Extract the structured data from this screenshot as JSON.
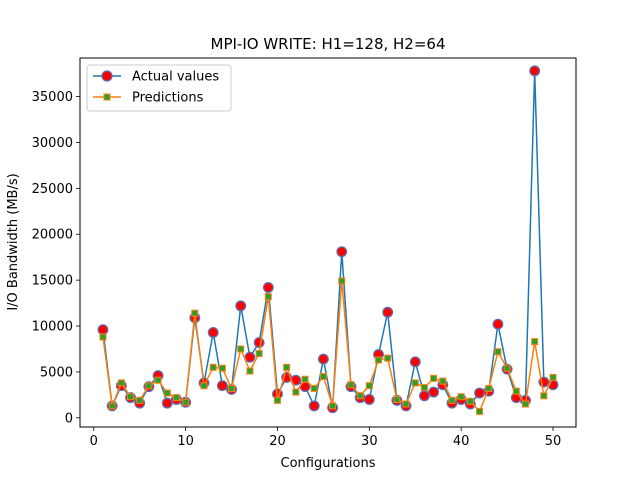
{
  "chart_data": {
    "type": "line",
    "title": "MPI-IO WRITE: H1=128, H2=64",
    "xlabel": "Configurations",
    "ylabel": "I/O Bandwidth (MB/s)",
    "xlim": [
      -1.5,
      52.5
    ],
    "ylim": [
      -1000,
      39200
    ],
    "xticks": [
      0,
      10,
      20,
      30,
      40,
      50
    ],
    "yticks": [
      0,
      5000,
      10000,
      15000,
      20000,
      25000,
      30000,
      35000
    ],
    "grid": false,
    "legend_position": "upper-left",
    "x": [
      1,
      2,
      3,
      4,
      5,
      6,
      7,
      8,
      9,
      10,
      11,
      12,
      13,
      14,
      15,
      16,
      17,
      18,
      19,
      20,
      21,
      22,
      23,
      24,
      25,
      26,
      27,
      28,
      29,
      30,
      31,
      32,
      33,
      34,
      35,
      36,
      37,
      38,
      39,
      40,
      41,
      42,
      43,
      44,
      45,
      46,
      47,
      48,
      49,
      50
    ],
    "series": [
      {
        "name": "Actual values",
        "line_color": "#1f77b4",
        "marker": "circle",
        "marker_face": "#ff0000",
        "marker_edge": "#5f6fb0",
        "values": [
          9600,
          1300,
          3500,
          2200,
          1600,
          3400,
          4600,
          1600,
          2000,
          1700,
          10900,
          3800,
          9300,
          3500,
          3100,
          12200,
          6600,
          8200,
          14200,
          2600,
          4400,
          4100,
          3400,
          1300,
          6400,
          1100,
          18100,
          3400,
          2200,
          2000,
          6900,
          11500,
          1900,
          1300,
          6100,
          2400,
          2800,
          3600,
          1600,
          2000,
          1500,
          2700,
          2900,
          10200,
          5300,
          2200,
          1900,
          37800,
          3900,
          3600
        ]
      },
      {
        "name": "Predictions",
        "line_color": "#ff7f0e",
        "marker": "square",
        "marker_face": "#2ca02c",
        "marker_edge": "#ff7f0e",
        "values": [
          8800,
          1300,
          3800,
          2300,
          1900,
          3500,
          4100,
          2700,
          2200,
          1700,
          11400,
          3500,
          5500,
          5400,
          3200,
          7500,
          5100,
          7000,
          13200,
          1900,
          5500,
          2800,
          4200,
          3200,
          4500,
          1300,
          14900,
          3600,
          2400,
          3500,
          6300,
          6500,
          2000,
          1500,
          3800,
          3300,
          4300,
          4000,
          1900,
          2300,
          1800,
          700,
          3200,
          7200,
          5400,
          2900,
          1500,
          8300,
          2400,
          4400
        ]
      }
    ]
  }
}
